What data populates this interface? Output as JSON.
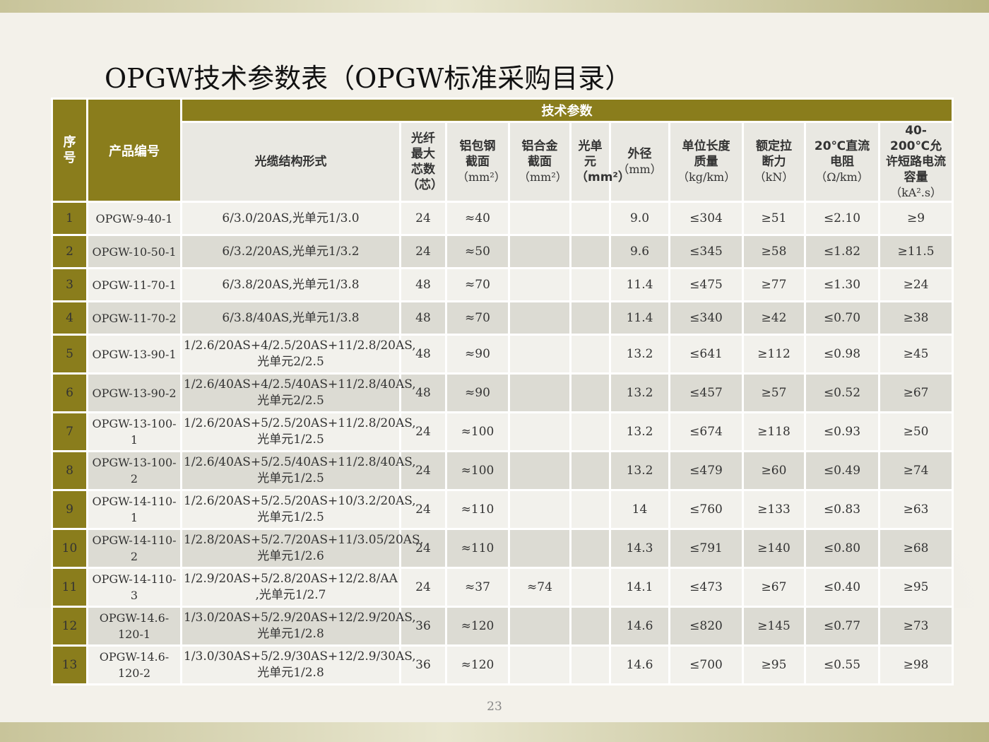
{
  "title": "OPGW技术参数表（OPGW标准采购目录）",
  "page_number": "23",
  "headers": {
    "seq": "序号",
    "code": "产品编号",
    "group": "技术参数",
    "structure": "光缆结构形式",
    "fiber": "光纤最大芯数（芯）",
    "acs": "铝包钢截面",
    "acs_unit": "（mm²）",
    "alloy": "铝合金截面",
    "alloy_unit": "（mm²）",
    "unit_elem": "光单元（mm²）",
    "diameter": "外径",
    "diameter_unit": "（mm）",
    "mass": "单位长度质量",
    "mass_unit": "（kg/km）",
    "tensile": "额定拉断力",
    "tensile_unit": "（kN）",
    "resistance": "20℃直流电阻",
    "resistance_unit": "（Ω/km）",
    "short_circuit": "40-200℃允许短路电流容量",
    "short_circuit_unit": "（kA².s）"
  },
  "rows": [
    {
      "seq": "1",
      "code": "OPGW-9-40-1",
      "structure": "6/3.0/20AS,光单元1/3.0",
      "fiber": "24",
      "acs": "≈40",
      "alloy": "",
      "unit": "",
      "diameter": "9.0",
      "mass": "≤304",
      "tensile": "≥51",
      "resistance": "≤2.10",
      "short": "≥9"
    },
    {
      "seq": "2",
      "code": "OPGW-10-50-1",
      "structure": "6/3.2/20AS,光单元1/3.2",
      "fiber": "24",
      "acs": "≈50",
      "alloy": "",
      "unit": "",
      "diameter": "9.6",
      "mass": "≤345",
      "tensile": "≥58",
      "resistance": "≤1.82",
      "short": "≥11.5"
    },
    {
      "seq": "3",
      "code": "OPGW-11-70-1",
      "structure": "6/3.8/20AS,光单元1/3.8",
      "fiber": "48",
      "acs": "≈70",
      "alloy": "",
      "unit": "",
      "diameter": "11.4",
      "mass": "≤475",
      "tensile": "≥77",
      "resistance": "≤1.30",
      "short": "≥24"
    },
    {
      "seq": "4",
      "code": "OPGW-11-70-2",
      "structure": "6/3.8/40AS,光单元1/3.8",
      "fiber": "48",
      "acs": "≈70",
      "alloy": "",
      "unit": "",
      "diameter": "11.4",
      "mass": "≤340",
      "tensile": "≥42",
      "resistance": "≤0.70",
      "short": "≥38"
    },
    {
      "seq": "5",
      "code": "OPGW-13-90-1",
      "structure": "1/2.6/20AS+4/2.5/20AS+11/2.8/20AS,光单元2/2.5",
      "fiber": "48",
      "acs": "≈90",
      "alloy": "",
      "unit": "",
      "diameter": "13.2",
      "mass": "≤641",
      "tensile": "≥112",
      "resistance": "≤0.98",
      "short": "≥45"
    },
    {
      "seq": "6",
      "code": "OPGW-13-90-2",
      "structure": "1/2.6/40AS+4/2.5/40AS+11/2.8/40AS,光单元2/2.5",
      "fiber": "48",
      "acs": "≈90",
      "alloy": "",
      "unit": "",
      "diameter": "13.2",
      "mass": "≤457",
      "tensile": "≥57",
      "resistance": "≤0.52",
      "short": "≥67"
    },
    {
      "seq": "7",
      "code": "OPGW-13-100-1",
      "structure": "1/2.6/20AS+5/2.5/20AS+11/2.8/20AS,光单元1/2.5",
      "fiber": "24",
      "acs": "≈100",
      "alloy": "",
      "unit": "",
      "diameter": "13.2",
      "mass": "≤674",
      "tensile": "≥118",
      "resistance": "≤0.93",
      "short": "≥50"
    },
    {
      "seq": "8",
      "code": "OPGW-13-100-2",
      "structure": "1/2.6/40AS+5/2.5/40AS+11/2.8/40AS,光单元1/2.5",
      "fiber": "24",
      "acs": "≈100",
      "alloy": "",
      "unit": "",
      "diameter": "13.2",
      "mass": "≤479",
      "tensile": "≥60",
      "resistance": "≤0.49",
      "short": "≥74"
    },
    {
      "seq": "9",
      "code": "OPGW-14-110-1",
      "structure": "1/2.6/20AS+5/2.5/20AS+10/3.2/20AS,光单元1/2.5",
      "fiber": "24",
      "acs": "≈110",
      "alloy": "",
      "unit": "",
      "diameter": "14",
      "mass": "≤760",
      "tensile": "≥133",
      "resistance": "≤0.83",
      "short": "≥63"
    },
    {
      "seq": "10",
      "code": "OPGW-14-110-2",
      "structure": "1/2.8/20AS+5/2.7/20AS+11/3.05/20AS,光单元1/2.6",
      "fiber": "24",
      "acs": "≈110",
      "alloy": "",
      "unit": "",
      "diameter": "14.3",
      "mass": "≤791",
      "tensile": "≥140",
      "resistance": "≤0.80",
      "short": "≥68"
    },
    {
      "seq": "11",
      "code": "OPGW-14-110-3",
      "structure": "1/2.9/20AS+5/2.8/20AS+12/2.8/AA ,光单元1/2.7",
      "fiber": "24",
      "acs": "≈37",
      "alloy": "≈74",
      "unit": "",
      "diameter": "14.1",
      "mass": "≤473",
      "tensile": "≥67",
      "resistance": "≤0.40",
      "short": "≥95"
    },
    {
      "seq": "12",
      "code": "OPGW-14.6-120-1",
      "structure": "1/3.0/20AS+5/2.9/20AS+12/2.9/20AS,光单元1/2.8",
      "fiber": "36",
      "acs": "≈120",
      "alloy": "",
      "unit": "",
      "diameter": "14.6",
      "mass": "≤820",
      "tensile": "≥145",
      "resistance": "≤0.77",
      "short": "≥73"
    },
    {
      "seq": "13",
      "code": "OPGW-14.6-120-2",
      "structure": "1/3.0/30AS+5/2.9/30AS+12/2.9/30AS,光单元1/2.8",
      "fiber": "36",
      "acs": "≈120",
      "alloy": "",
      "unit": "",
      "diameter": "14.6",
      "mass": "≤700",
      "tensile": "≥95",
      "resistance": "≤0.55",
      "short": "≥98"
    }
  ]
}
